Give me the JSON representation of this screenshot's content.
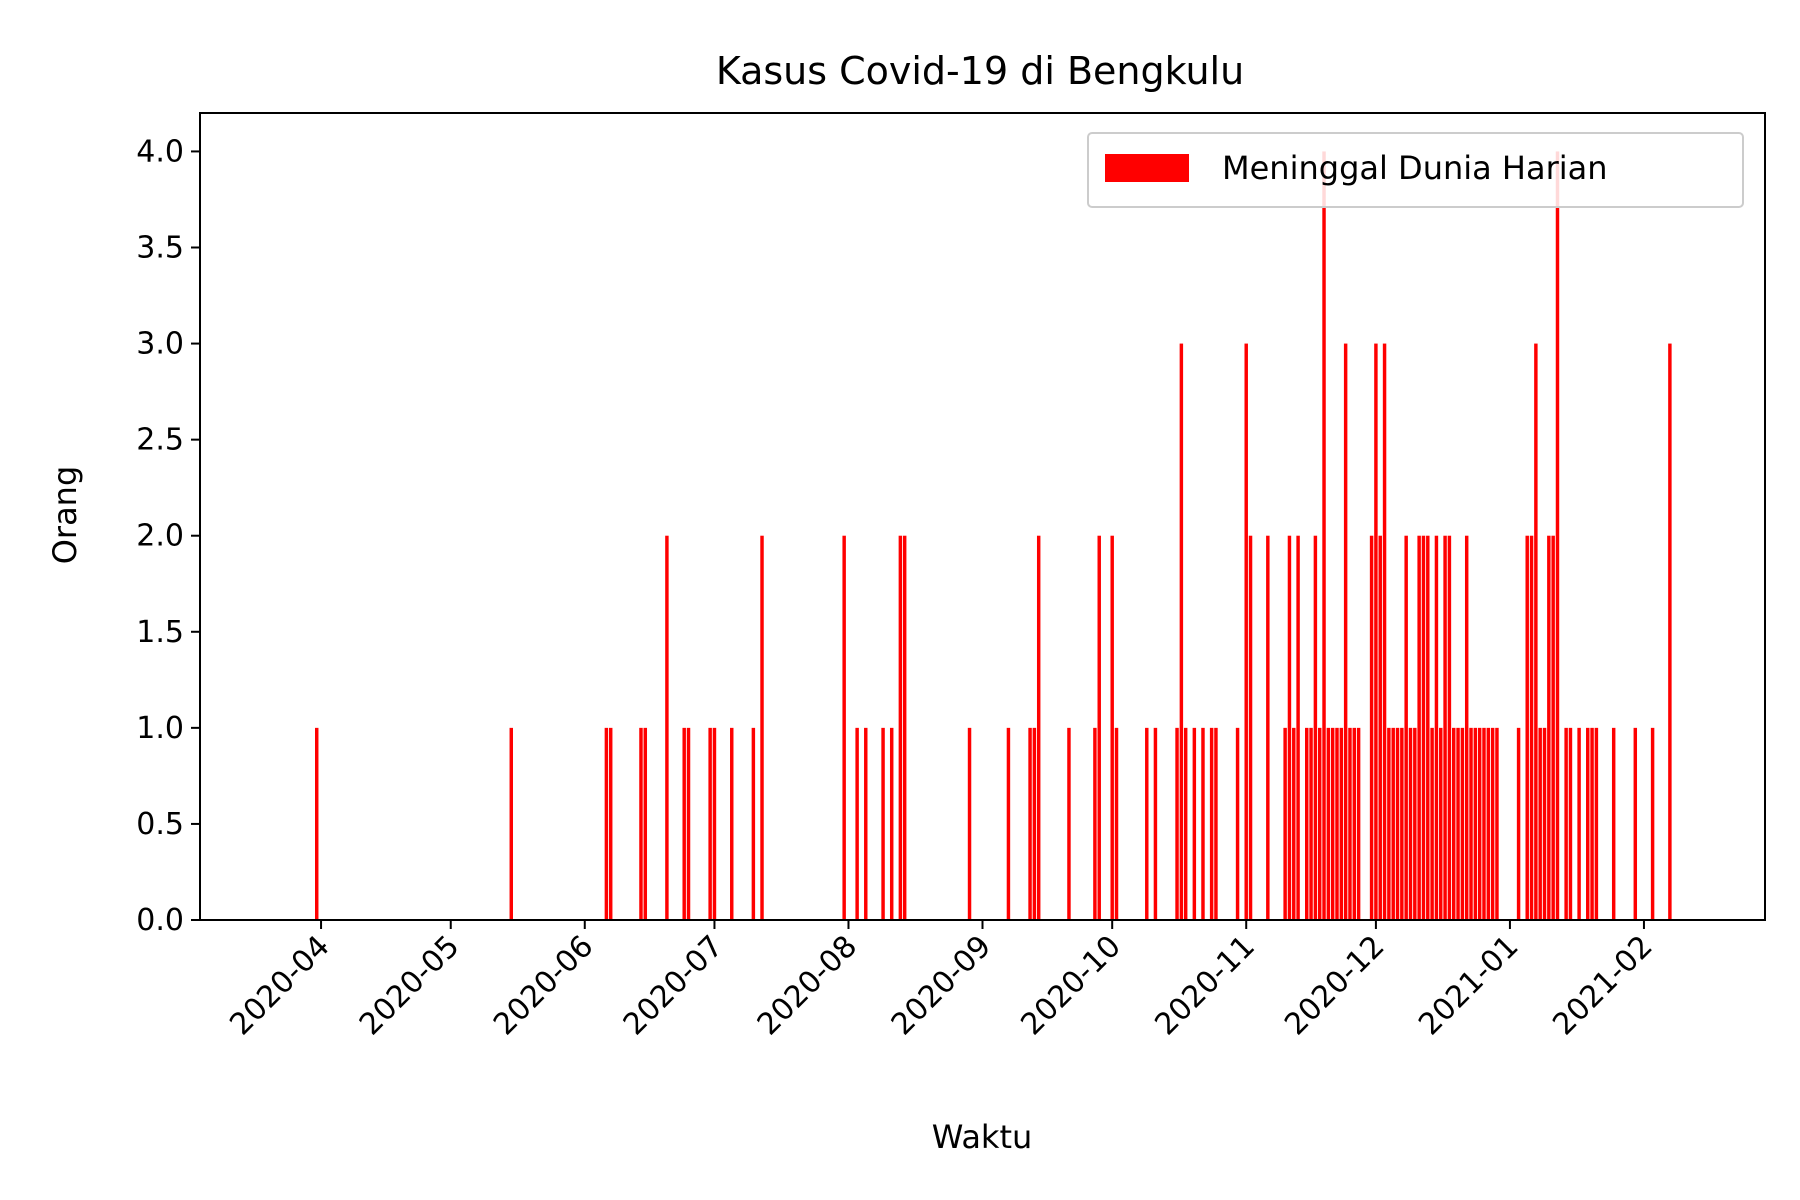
{
  "chart_data": {
    "type": "bar",
    "title": "Kasus Covid-19 di Bengkulu",
    "xlabel": "Waktu",
    "ylabel": "Orang",
    "ylim": [
      0,
      4.2
    ],
    "xlim": [
      "2020-03-04",
      "2021-03-01"
    ],
    "grid": false,
    "legend_position": "top-right",
    "color": "#ff0000",
    "x_tick_labels": [
      "2020-04",
      "2020-05",
      "2020-06",
      "2020-07",
      "2020-08",
      "2020-09",
      "2020-10",
      "2020-11",
      "2020-12",
      "2021-01",
      "2021-02"
    ],
    "y_tick_labels": [
      "0.0",
      "0.5",
      "1.0",
      "1.5",
      "2.0",
      "2.5",
      "3.0",
      "3.5",
      "4.0"
    ],
    "series": [
      {
        "name": "Meninggal Dunia Harian",
        "x": [
          "2020-03-31",
          "2020-05-15",
          "2020-06-06",
          "2020-06-07",
          "2020-06-14",
          "2020-06-15",
          "2020-06-20",
          "2020-06-24",
          "2020-06-25",
          "2020-06-30",
          "2020-07-01",
          "2020-07-05",
          "2020-07-10",
          "2020-07-12",
          "2020-07-31",
          "2020-08-03",
          "2020-08-05",
          "2020-08-09",
          "2020-08-11",
          "2020-08-13",
          "2020-08-14",
          "2020-08-29",
          "2020-09-07",
          "2020-09-12",
          "2020-09-13",
          "2020-09-14",
          "2020-09-21",
          "2020-09-27",
          "2020-09-28",
          "2020-10-01",
          "2020-10-02",
          "2020-10-09",
          "2020-10-11",
          "2020-10-16",
          "2020-10-17",
          "2020-10-18",
          "2020-10-20",
          "2020-10-22",
          "2020-10-24",
          "2020-10-25",
          "2020-10-30",
          "2020-11-01",
          "2020-11-02",
          "2020-11-06",
          "2020-11-10",
          "2020-11-11",
          "2020-11-12",
          "2020-11-13",
          "2020-11-15",
          "2020-11-16",
          "2020-11-17",
          "2020-11-18",
          "2020-11-19",
          "2020-11-20",
          "2020-11-21",
          "2020-11-22",
          "2020-11-23",
          "2020-11-24",
          "2020-11-25",
          "2020-11-26",
          "2020-11-27",
          "2020-11-30",
          "2020-12-01",
          "2020-12-02",
          "2020-12-03",
          "2020-12-04",
          "2020-12-05",
          "2020-12-06",
          "2020-12-07",
          "2020-12-08",
          "2020-12-09",
          "2020-12-10",
          "2020-12-11",
          "2020-12-12",
          "2020-12-13",
          "2020-12-14",
          "2020-12-15",
          "2020-12-16",
          "2020-12-17",
          "2020-12-18",
          "2020-12-19",
          "2020-12-20",
          "2020-12-21",
          "2020-12-22",
          "2020-12-23",
          "2020-12-24",
          "2020-12-25",
          "2020-12-26",
          "2020-12-27",
          "2020-12-28",
          "2020-12-29",
          "2021-01-03",
          "2021-01-05",
          "2021-01-06",
          "2021-01-07",
          "2021-01-08",
          "2021-01-09",
          "2021-01-10",
          "2021-01-11",
          "2021-01-12",
          "2021-01-14",
          "2021-01-15",
          "2021-01-17",
          "2021-01-19",
          "2021-01-20",
          "2021-01-21",
          "2021-01-25",
          "2021-01-30",
          "2021-02-03",
          "2021-02-07"
        ],
        "values": [
          1,
          1,
          1,
          1,
          1,
          1,
          2,
          1,
          1,
          1,
          1,
          1,
          1,
          2,
          2,
          1,
          1,
          1,
          1,
          2,
          2,
          1,
          1,
          1,
          1,
          2,
          1,
          1,
          2,
          2,
          1,
          1,
          1,
          1,
          3,
          1,
          1,
          1,
          1,
          1,
          1,
          3,
          2,
          2,
          1,
          2,
          1,
          2,
          1,
          1,
          2,
          1,
          4,
          1,
          1,
          1,
          1,
          3,
          1,
          1,
          1,
          2,
          3,
          2,
          3,
          1,
          1,
          1,
          1,
          2,
          1,
          1,
          2,
          2,
          2,
          1,
          2,
          1,
          2,
          2,
          1,
          1,
          1,
          2,
          1,
          1,
          1,
          1,
          1,
          1,
          1,
          1,
          2,
          2,
          3,
          1,
          1,
          2,
          2,
          4,
          1,
          1,
          1,
          1,
          1,
          1,
          1,
          1,
          1,
          3
        ]
      }
    ]
  }
}
